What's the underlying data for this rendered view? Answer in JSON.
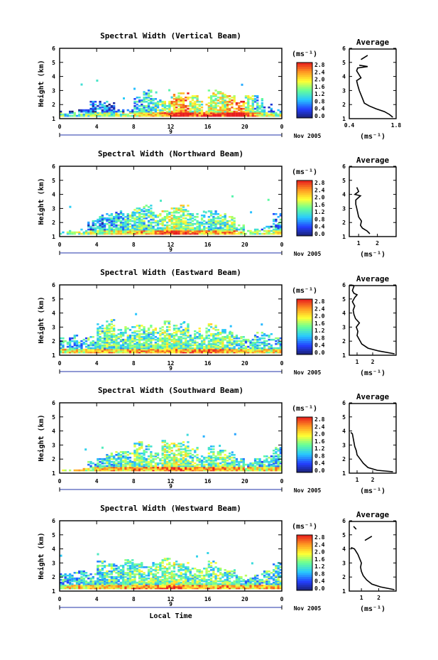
{
  "figure": {
    "xlabel": "Local Time",
    "x_ticks": [
      "0",
      "4",
      "8",
      "12",
      "16",
      "20",
      "0"
    ],
    "day_label": "9",
    "month_label": "Nov 2005",
    "ylabel": "Height (km)",
    "y_ticks": [
      "1",
      "2",
      "3",
      "4",
      "5",
      "6"
    ],
    "cb_unit": "(ms⁻¹)",
    "cb_ticks": [
      "0.0",
      "0.4",
      "0.8",
      "1.2",
      "1.6",
      "2.0",
      "2.4",
      "2.8"
    ],
    "avg_title": "Average",
    "avg_unit": "(ms⁻¹)"
  },
  "chart_data": [
    {
      "type": "heatmap",
      "title": "Spectral Width (Vertical Beam)",
      "xlabel": "",
      "ylabel": "Height (km)",
      "xlim": [
        0,
        24
      ],
      "ylim": [
        1,
        6
      ],
      "colorbar_range": [
        0.0,
        2.8
      ],
      "colorscale": [
        "#1a1f6e",
        "#2340ff",
        "#28c8ff",
        "#66ff99",
        "#ffff33",
        "#ff9922",
        "#e81e1e"
      ],
      "cloud_top_km": [
        1.5,
        1.5,
        1.6,
        2.2,
        2.2,
        2.3,
        1.7,
        1.6,
        2.6,
        3.0,
        2.4,
        2.2,
        2.8,
        2.8,
        2.6,
        2.2,
        3.0,
        2.9,
        2.6,
        2.2,
        2.6,
        2.6,
        2.0,
        1.6
      ],
      "mean_level": [
        0.4,
        0.4,
        0.5,
        0.5,
        0.6,
        0.6,
        0.7,
        0.8,
        0.9,
        1.1,
        1.3,
        1.5,
        2.1,
        2.3,
        1.7,
        1.6,
        1.8,
        1.7,
        2.2,
        2.5,
        1.5,
        1.1,
        0.8,
        0.7
      ],
      "average": {
        "xlim": [
          0.4,
          1.8
        ],
        "x_ticks": [
          "0.4",
          "1.8"
        ],
        "ylim": [
          1,
          6
        ],
        "profile": [
          [
            1.7,
            1.1
          ],
          [
            1.6,
            1.3
          ],
          [
            1.45,
            1.5
          ],
          [
            1.2,
            1.7
          ],
          [
            1.0,
            1.9
          ],
          [
            0.85,
            2.1
          ],
          [
            0.8,
            2.4
          ],
          [
            0.75,
            2.7
          ],
          [
            0.7,
            3.0
          ],
          [
            0.65,
            3.4
          ],
          [
            0.62,
            3.7
          ],
          [
            0.75,
            3.9
          ],
          [
            0.7,
            4.1
          ],
          [
            0.62,
            4.4
          ],
          [
            0.65,
            4.6
          ],
          [
            0.95,
            4.7
          ],
          [
            0.7,
            4.8
          ]
        ],
        "extra_segments": [
          [
            [
              0.75,
              5.2
            ],
            [
              0.95,
              5.5
            ]
          ]
        ]
      }
    },
    {
      "type": "heatmap",
      "title": "Spectral Width (Northward Beam)",
      "xlabel": "",
      "ylabel": "Height (km)",
      "xlim": [
        0,
        24
      ],
      "ylim": [
        1,
        6
      ],
      "colorbar_range": [
        0.0,
        2.8
      ],
      "cloud_top_km": [
        1.3,
        1.4,
        1.5,
        2.1,
        2.5,
        2.6,
        2.8,
        2.7,
        3.0,
        3.2,
        2.7,
        2.8,
        3.0,
        3.2,
        2.6,
        2.5,
        2.8,
        2.6,
        2.4,
        1.8,
        1.4,
        1.5,
        1.8,
        2.6
      ],
      "mean_level": [
        0.5,
        0.5,
        0.6,
        0.7,
        0.8,
        0.9,
        1.0,
        1.2,
        1.3,
        1.2,
        1.3,
        1.6,
        1.7,
        1.6,
        1.4,
        1.3,
        1.2,
        1.3,
        1.4,
        1.0,
        0.8,
        0.7,
        0.8,
        0.9
      ],
      "average": {
        "xlim": [
          0.5,
          3.0
        ],
        "x_ticks": [
          "1",
          "2"
        ],
        "ylim": [
          1,
          6
        ],
        "profile": [
          [
            1.6,
            1.2
          ],
          [
            1.45,
            1.4
          ],
          [
            1.2,
            1.6
          ],
          [
            1.1,
            1.8
          ],
          [
            1.15,
            2.1
          ],
          [
            1.0,
            2.4
          ],
          [
            0.95,
            2.7
          ],
          [
            0.9,
            3.0
          ],
          [
            0.85,
            3.3
          ],
          [
            0.85,
            3.6
          ],
          [
            1.1,
            3.9
          ],
          [
            0.8,
            4.0
          ],
          [
            1.0,
            4.2
          ],
          [
            0.9,
            4.5
          ]
        ],
        "extra_segments": []
      }
    },
    {
      "type": "heatmap",
      "title": "Spectral Width (Eastward Beam)",
      "xlabel": "",
      "ylabel": "Height (km)",
      "xlim": [
        0,
        24
      ],
      "ylim": [
        1,
        6
      ],
      "colorbar_range": [
        0.0,
        2.8
      ],
      "cloud_top_km": [
        2.2,
        2.4,
        2.2,
        2.3,
        3.2,
        3.5,
        2.8,
        3.0,
        3.2,
        3.1,
        2.9,
        3.4,
        3.1,
        3.3,
        2.7,
        2.9,
        3.2,
        2.8,
        2.6,
        2.4,
        2.2,
        2.6,
        2.5,
        2.2
      ],
      "mean_level": [
        1.0,
        1.0,
        1.0,
        1.1,
        1.2,
        1.3,
        1.2,
        1.3,
        1.4,
        1.3,
        1.4,
        1.5,
        1.5,
        1.4,
        1.3,
        1.4,
        1.5,
        1.4,
        1.3,
        1.2,
        1.1,
        1.1,
        1.0,
        1.1
      ],
      "average": {
        "xlim": [
          0.5,
          3.5
        ],
        "x_ticks": [
          "1",
          "2"
        ],
        "ylim": [
          1,
          6
        ],
        "profile": [
          [
            3.4,
            1.1
          ],
          [
            2.4,
            1.3
          ],
          [
            1.7,
            1.5
          ],
          [
            1.3,
            1.8
          ],
          [
            1.15,
            2.1
          ],
          [
            1.0,
            2.4
          ],
          [
            1.05,
            2.7
          ],
          [
            0.95,
            3.0
          ],
          [
            1.15,
            3.3
          ],
          [
            0.9,
            3.6
          ],
          [
            0.8,
            3.9
          ],
          [
            0.75,
            4.2
          ],
          [
            0.85,
            4.5
          ],
          [
            0.7,
            4.8
          ],
          [
            0.85,
            5.1
          ],
          [
            1.0,
            5.3
          ],
          [
            0.8,
            5.4
          ],
          [
            0.7,
            5.6
          ],
          [
            0.8,
            5.9
          ],
          [
            0.7,
            6.0
          ]
        ],
        "extra_segments": []
      }
    },
    {
      "type": "heatmap",
      "title": "Spectral Width (Southward Beam)",
      "xlabel": "",
      "ylabel": "Height (km)",
      "xlim": [
        0,
        24
      ],
      "ylim": [
        1,
        6
      ],
      "colorbar_range": [
        0.0,
        2.8
      ],
      "cloud_top_km": [
        1.2,
        1.2,
        1.3,
        1.8,
        2.1,
        2.4,
        2.8,
        2.5,
        3.2,
        3.0,
        2.4,
        3.3,
        3.1,
        3.2,
        2.8,
        2.2,
        2.9,
        2.6,
        2.4,
        2.0,
        1.7,
        2.0,
        2.2,
        2.8
      ],
      "mean_level": [
        0.8,
        0.8,
        0.9,
        1.0,
        1.1,
        1.2,
        1.2,
        1.3,
        1.4,
        1.3,
        1.4,
        1.5,
        1.6,
        1.5,
        1.4,
        1.3,
        1.4,
        1.4,
        1.3,
        1.2,
        1.0,
        1.0,
        1.1,
        1.1
      ],
      "average": {
        "xlim": [
          0.5,
          3.5
        ],
        "x_ticks": [
          "1",
          "2"
        ],
        "ylim": [
          1,
          6
        ],
        "profile": [
          [
            3.3,
            1.1
          ],
          [
            2.3,
            1.2
          ],
          [
            1.7,
            1.4
          ],
          [
            1.4,
            1.7
          ],
          [
            1.2,
            2.0
          ],
          [
            1.0,
            2.3
          ],
          [
            0.95,
            2.6
          ],
          [
            0.85,
            2.9
          ],
          [
            0.8,
            3.2
          ],
          [
            0.75,
            3.5
          ],
          [
            0.7,
            3.8
          ],
          [
            0.6,
            3.9
          ]
        ],
        "extra_segments": []
      }
    },
    {
      "type": "heatmap",
      "title": "Spectral Width (Westward Beam)",
      "xlabel": "Local Time",
      "ylabel": "Height (km)",
      "xlim": [
        0,
        24
      ],
      "ylim": [
        1,
        6
      ],
      "colorbar_range": [
        0.0,
        2.8
      ],
      "cloud_top_km": [
        2.2,
        2.3,
        2.4,
        2.2,
        3.1,
        2.9,
        2.8,
        3.2,
        3.0,
        2.7,
        3.0,
        3.3,
        3.1,
        3.0,
        2.6,
        2.6,
        3.1,
        2.6,
        2.4,
        2.2,
        2.1,
        2.2,
        2.4,
        3.0
      ],
      "mean_level": [
        1.0,
        1.0,
        1.1,
        1.1,
        1.2,
        1.3,
        1.2,
        1.3,
        1.4,
        1.3,
        1.4,
        1.5,
        1.6,
        1.4,
        1.3,
        1.3,
        1.4,
        1.4,
        1.3,
        1.2,
        1.1,
        1.1,
        1.2,
        1.2
      ],
      "average": {
        "xlim": [
          0.3,
          3.0
        ],
        "x_ticks": [
          "1",
          "2"
        ],
        "ylim": [
          1,
          6
        ],
        "profile": [
          [
            2.9,
            1.1
          ],
          [
            2.1,
            1.3
          ],
          [
            1.6,
            1.5
          ],
          [
            1.3,
            1.8
          ],
          [
            1.1,
            2.1
          ],
          [
            1.0,
            2.4
          ],
          [
            0.95,
            2.7
          ],
          [
            1.0,
            3.0
          ],
          [
            0.9,
            3.3
          ],
          [
            0.8,
            3.6
          ],
          [
            0.7,
            3.8
          ],
          [
            0.6,
            4.0
          ],
          [
            0.4,
            4.1
          ]
        ],
        "extra_segments": [
          [
            [
              0.7,
              5.4
            ],
            [
              0.55,
              5.6
            ]
          ],
          [
            [
              1.2,
              4.6
            ],
            [
              1.6,
              4.9
            ]
          ]
        ]
      }
    }
  ]
}
